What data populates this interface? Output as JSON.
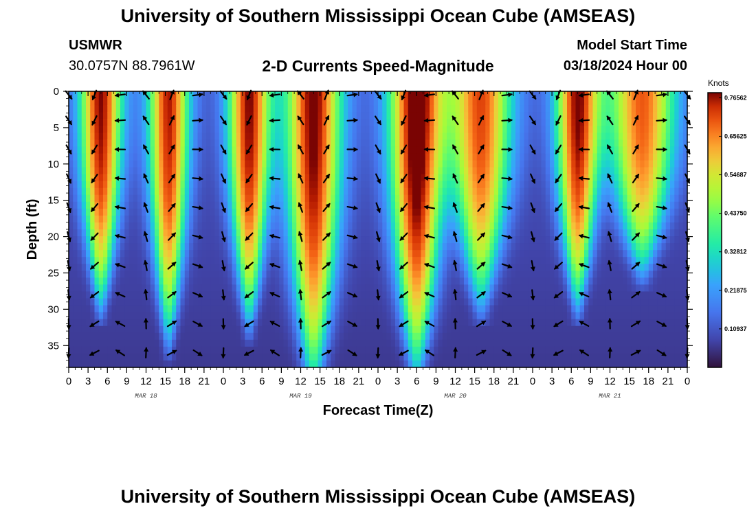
{
  "header": {
    "title": "University of Southern Mississippi Ocean Cube (AMSEAS)",
    "station": "USMWR",
    "coords": "30.0757N  88.7961W",
    "subtitle": "2-D Currents Speed-Magnitude",
    "model_label": "Model Start Time",
    "model_time": "03/18/2024 Hour 00"
  },
  "footer": {
    "title": "University of Southern Mississippi Ocean Cube (AMSEAS)"
  },
  "chart_data": {
    "type": "heatmap",
    "title": "2-D Currents Speed-Magnitude",
    "xlabel": "Forecast Time(Z)",
    "ylabel": "Depth (ft)",
    "x_ticks": [
      "0",
      "3",
      "6",
      "9",
      "12",
      "15",
      "18",
      "21",
      "0",
      "3",
      "6",
      "9",
      "12",
      "15",
      "18",
      "21",
      "0",
      "3",
      "6",
      "9",
      "12",
      "15",
      "18",
      "21",
      "0",
      "3",
      "6",
      "9",
      "12",
      "15",
      "18",
      "21",
      "0"
    ],
    "x_range_hours": [
      0,
      96
    ],
    "day_labels": [
      {
        "label": "MAR 18",
        "hour": 12
      },
      {
        "label": "MAR 19",
        "hour": 36
      },
      {
        "label": "MAR 20",
        "hour": 60
      },
      {
        "label": "MAR 21",
        "hour": 84
      }
    ],
    "y_ticks": [
      "0",
      "5",
      "10",
      "15",
      "20",
      "25",
      "30",
      "35"
    ],
    "y_range_ft": [
      0,
      38
    ],
    "colorbar": {
      "unit": "Knots",
      "min": 0,
      "max": 0.78,
      "labels": [
        "0.76562",
        "0.65625",
        "0.54687",
        "0.43750",
        "0.32812",
        "0.21875",
        "0.10937"
      ],
      "label_values": [
        0.76562,
        0.65625,
        0.54687,
        0.4375,
        0.32812,
        0.21875,
        0.10937
      ]
    },
    "speed_peaks": [
      {
        "hour": 5,
        "amp": 0.68,
        "sigma": 2.3,
        "max_depth": 26
      },
      {
        "hour": 15.5,
        "amp": 0.66,
        "sigma": 2.2,
        "max_depth": 30
      },
      {
        "hour": 28,
        "amp": 0.68,
        "sigma": 2.3,
        "max_depth": 28
      },
      {
        "hour": 38,
        "amp": 0.7,
        "sigma": 3.0,
        "max_depth": 36
      },
      {
        "hour": 54,
        "amp": 0.74,
        "sigma": 3.0,
        "max_depth": 34
      },
      {
        "hour": 64,
        "amp": 0.62,
        "sigma": 3.3,
        "max_depth": 26
      },
      {
        "hour": 79,
        "amp": 0.68,
        "sigma": 2.4,
        "max_depth": 26
      },
      {
        "hour": 89,
        "amp": 0.6,
        "sigma": 3.6,
        "max_depth": 22
      }
    ],
    "arrow_hours": [
      0,
      4,
      8,
      12,
      16,
      20,
      24,
      28,
      32,
      36,
      40,
      44,
      48,
      52,
      56,
      60,
      64,
      68,
      72,
      76,
      80,
      84,
      88,
      92,
      96
    ],
    "arrow_depths_ft": [
      0.5,
      4,
      8,
      12,
      16,
      20,
      24,
      28,
      32,
      36
    ],
    "arrow_flow_period_hours": 24
  }
}
